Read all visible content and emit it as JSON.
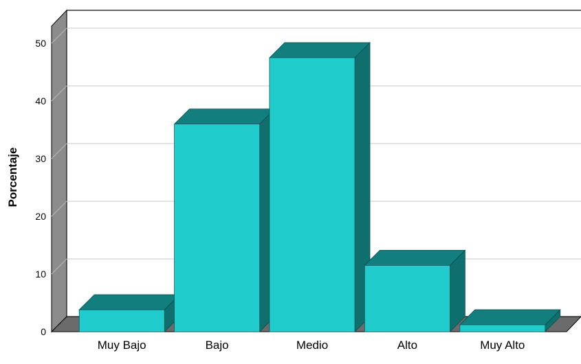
{
  "chart_data": {
    "type": "bar",
    "categories": [
      "Muy Bajo",
      "Bajo",
      "Medio",
      "Alto",
      "Muy Alto"
    ],
    "values": [
      3.8,
      36.0,
      47.5,
      11.5,
      1.2
    ],
    "title": "",
    "xlabel": "",
    "ylabel": "Porcentaje",
    "ylim": [
      0,
      50
    ],
    "yticks": [
      0,
      10,
      20,
      30,
      40,
      50
    ],
    "grid": true,
    "legend": "none",
    "style": "3d"
  },
  "colors": {
    "bar_front": "#20cccc",
    "bar_top": "#127e7e",
    "bar_side": "#0f6e6e",
    "back_wall": "#ffffff",
    "left_wall": "#8c8c8c",
    "floor": "#6b6b6b",
    "grid": "#c8c8c8"
  }
}
